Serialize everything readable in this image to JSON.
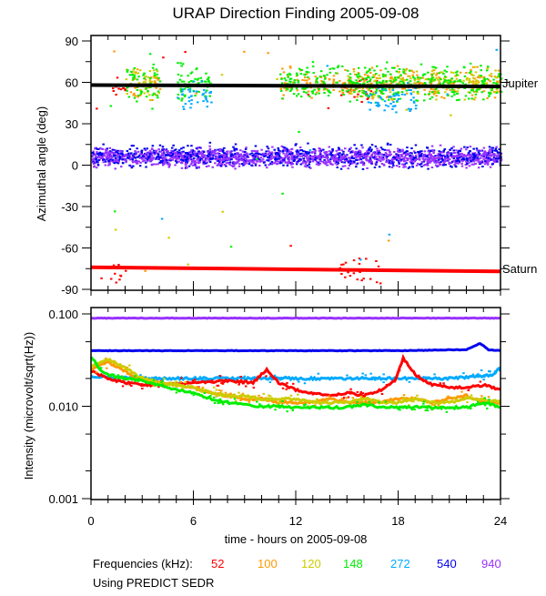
{
  "chart_data": [
    {
      "type": "scatter",
      "title": "URAP Direction Finding  2005-09-08",
      "xlabel": "",
      "ylabel": "Azimuthal angle (deg)",
      "xlim": [
        0,
        24
      ],
      "ylim": [
        -90,
        94
      ],
      "x_ticks": [
        0,
        6,
        12,
        18,
        24
      ],
      "y_ticks": [
        {
          "value": 90,
          "label": "90"
        },
        {
          "value": 60,
          "label": "60"
        },
        {
          "value": 30,
          "label": "30"
        },
        {
          "value": 0,
          "label": "0"
        },
        {
          "value": -30,
          "label": "-30"
        },
        {
          "value": -60,
          "label": "-60"
        },
        {
          "value": -90,
          "label": "-90"
        }
      ],
      "grid": false,
      "reference_lines": [
        {
          "name": "Jupiter",
          "label": "Jupiter",
          "color": "#000000",
          "x": [
            0,
            24
          ],
          "y": [
            58,
            57
          ]
        },
        {
          "name": "Saturn",
          "label": "Saturn",
          "color": "#ff0000",
          "x": [
            0,
            24
          ],
          "y": [
            -74,
            -77
          ]
        }
      ],
      "series": [
        {
          "name": "52 kHz",
          "color": "#ff0000",
          "scatter_center": {
            "x_ranges": [
              [
                1.0,
                2.0
              ],
              [
                14.5,
                17.0
              ]
            ],
            "y_centers": [
              56,
              -76
            ],
            "spread": 8
          }
        },
        {
          "name": "100 kHz",
          "color": "#ff9900",
          "scatter_center": {
            "x_ranges": [
              [
                2.0,
                4.0
              ],
              [
                11.0,
                24.0
              ]
            ],
            "y_centers": [
              60
            ],
            "spread": 10
          }
        },
        {
          "name": "120 kHz",
          "color": "#cccc00",
          "scatter_center": {
            "x_ranges": [
              [
                2.0,
                4.0
              ],
              [
                15.0,
                24.0
              ]
            ],
            "y_centers": [
              60
            ],
            "spread": 10
          }
        },
        {
          "name": "148 kHz",
          "color": "#00ee00",
          "scatter_center": {
            "x_ranges": [
              [
                2.0,
                4.0
              ],
              [
                5.0,
                7.0
              ],
              [
                11.0,
                24.0
              ]
            ],
            "y_centers": [
              60
            ],
            "spread": 12
          }
        },
        {
          "name": "272 kHz",
          "color": "#00aaff",
          "scatter_center": {
            "x_ranges": [
              [
                5.0,
                7.0
              ],
              [
                16.0,
                19.0
              ]
            ],
            "y_centers": [
              50
            ],
            "spread": 10
          }
        },
        {
          "name": "540 kHz",
          "color": "#0000ee",
          "band": {
            "y_center": 7,
            "spread": 9
          }
        },
        {
          "name": "940 kHz",
          "color": "#9933ff",
          "band": {
            "y_center": 6,
            "spread": 8
          }
        }
      ]
    },
    {
      "type": "line",
      "title": "",
      "xlabel": "time - hours on 2005-09-08",
      "ylabel": "Intensity (microvolt/sqrt(Hz))",
      "yscale": "log",
      "xlim": [
        0,
        24
      ],
      "ylim": [
        0.001,
        0.117
      ],
      "x_ticks": [
        {
          "value": 0,
          "label": "0"
        },
        {
          "value": 6,
          "label": "6"
        },
        {
          "value": 12,
          "label": "12"
        },
        {
          "value": 18,
          "label": "18"
        },
        {
          "value": 24,
          "label": "24"
        }
      ],
      "y_ticks": [
        {
          "value": 0.1,
          "label": "0.100"
        },
        {
          "value": 0.01,
          "label": "0.010"
        },
        {
          "value": 0.001,
          "label": "0.001"
        }
      ],
      "grid": false,
      "series": [
        {
          "name": "940 kHz",
          "color": "#9933ff",
          "x": [
            0,
            6,
            12,
            18,
            24
          ],
          "y": [
            0.09,
            0.09,
            0.09,
            0.09,
            0.09
          ]
        },
        {
          "name": "540 kHz",
          "color": "#0000ee",
          "x": [
            0,
            6,
            12,
            18,
            22,
            22.8,
            23.3,
            24
          ],
          "y": [
            0.04,
            0.04,
            0.04,
            0.04,
            0.041,
            0.048,
            0.041,
            0.04
          ]
        },
        {
          "name": "272 kHz",
          "color": "#00aaff",
          "x": [
            0,
            3,
            6,
            9,
            12,
            18,
            21,
            22.5,
            23.5,
            24
          ],
          "y": [
            0.021,
            0.02,
            0.02,
            0.02,
            0.02,
            0.02,
            0.02,
            0.021,
            0.022,
            0.026
          ]
        },
        {
          "name": "52 kHz",
          "color": "#ff0000",
          "x": [
            0,
            1,
            2,
            3,
            4,
            6,
            8,
            9.5,
            10.3,
            11,
            12,
            13,
            14,
            15,
            16,
            17,
            17.8,
            18.3,
            19,
            20,
            21,
            22,
            23,
            24
          ],
          "y": [
            0.024,
            0.02,
            0.018,
            0.017,
            0.017,
            0.018,
            0.019,
            0.018,
            0.025,
            0.018,
            0.015,
            0.014,
            0.013,
            0.014,
            0.013,
            0.015,
            0.019,
            0.033,
            0.022,
            0.017,
            0.016,
            0.016,
            0.017,
            0.015
          ]
        },
        {
          "name": "100 kHz",
          "color": "#ff9900",
          "x": [
            0,
            1,
            2,
            3,
            4,
            5,
            6,
            7,
            8,
            9,
            10,
            11,
            12,
            13,
            14,
            15,
            16,
            17,
            18,
            19,
            20,
            21,
            22,
            23,
            24
          ],
          "y": [
            0.025,
            0.03,
            0.024,
            0.019,
            0.018,
            0.017,
            0.016,
            0.014,
            0.013,
            0.012,
            0.012,
            0.011,
            0.011,
            0.011,
            0.012,
            0.011,
            0.011,
            0.011,
            0.012,
            0.012,
            0.011,
            0.012,
            0.013,
            0.011,
            0.011
          ]
        },
        {
          "name": "120 kHz",
          "color": "#cccc00",
          "x": [
            0,
            1,
            2,
            3,
            4,
            5,
            6,
            7,
            8,
            9,
            10,
            11,
            12,
            13,
            14,
            15,
            16,
            17,
            18,
            19,
            20,
            21,
            22,
            23,
            24
          ],
          "y": [
            0.027,
            0.032,
            0.026,
            0.02,
            0.018,
            0.017,
            0.016,
            0.014,
            0.013,
            0.013,
            0.012,
            0.012,
            0.012,
            0.011,
            0.011,
            0.011,
            0.012,
            0.011,
            0.011,
            0.012,
            0.011,
            0.011,
            0.012,
            0.012,
            0.011
          ]
        },
        {
          "name": "148 kHz",
          "color": "#00ee00",
          "x": [
            0,
            0.5,
            1,
            2,
            3,
            4,
            5,
            6,
            7,
            8,
            9,
            10,
            11,
            12,
            13,
            14,
            15,
            16,
            17,
            18,
            19,
            20,
            21,
            22,
            23,
            24
          ],
          "y": [
            0.035,
            0.025,
            0.022,
            0.02,
            0.019,
            0.017,
            0.015,
            0.014,
            0.012,
            0.011,
            0.0105,
            0.01,
            0.01,
            0.0098,
            0.0098,
            0.0097,
            0.0097,
            0.0105,
            0.0098,
            0.0097,
            0.0098,
            0.0097,
            0.0097,
            0.0097,
            0.011,
            0.0098
          ]
        }
      ]
    }
  ],
  "figure": {
    "title": "URAP Direction Finding  2005-09-08",
    "reference_labels": {
      "jupiter": "Jupiter",
      "saturn": "Saturn"
    },
    "legend": {
      "prefix": "Frequencies (kHz):",
      "entries": [
        {
          "label": "52",
          "color": "#ff0000"
        },
        {
          "label": "100",
          "color": "#ff9900"
        },
        {
          "label": "120",
          "color": "#cccc00"
        },
        {
          "label": "148",
          "color": "#00ee00"
        },
        {
          "label": "272",
          "color": "#00aaff"
        },
        {
          "label": "540",
          "color": "#0000ee"
        },
        {
          "label": "940",
          "color": "#9933ff"
        }
      ],
      "placement": "bottom"
    },
    "footnote": "Using PREDICT SEDR"
  }
}
